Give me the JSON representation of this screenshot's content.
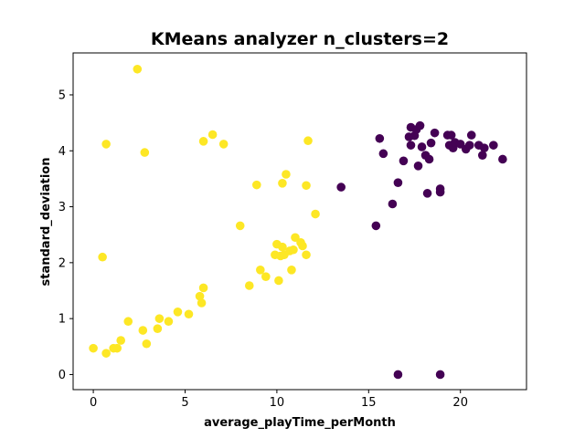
{
  "chart_data": {
    "type": "scatter",
    "title": "KMeans analyzer n_clusters=2",
    "xlabel": "average_playTime_perMonth",
    "ylabel": "standard_deviation",
    "xlim": [
      -1.1,
      23.6
    ],
    "ylim": [
      -0.27,
      5.75
    ],
    "xticks": [
      0,
      5,
      10,
      15,
      20
    ],
    "yticks": [
      0,
      1,
      2,
      3,
      4,
      5
    ],
    "grid": false,
    "legend": "none",
    "series": [
      {
        "color": "#440154",
        "points": [
          [
            13.5,
            3.35
          ],
          [
            15.4,
            2.66
          ],
          [
            15.6,
            4.22
          ],
          [
            15.8,
            3.95
          ],
          [
            16.3,
            3.05
          ],
          [
            16.6,
            3.43
          ],
          [
            16.9,
            3.82
          ],
          [
            17.2,
            4.25
          ],
          [
            17.3,
            4.42
          ],
          [
            17.3,
            4.1
          ],
          [
            17.5,
            4.27
          ],
          [
            17.6,
            4.38
          ],
          [
            17.7,
            3.73
          ],
          [
            17.8,
            4.45
          ],
          [
            17.9,
            4.07
          ],
          [
            18.1,
            3.92
          ],
          [
            18.2,
            3.24
          ],
          [
            18.3,
            3.85
          ],
          [
            18.4,
            4.14
          ],
          [
            18.6,
            4.32
          ],
          [
            18.9,
            3.32
          ],
          [
            18.9,
            3.26
          ],
          [
            19.3,
            4.28
          ],
          [
            19.4,
            4.1
          ],
          [
            19.5,
            4.28
          ],
          [
            19.6,
            4.05
          ],
          [
            19.7,
            4.15
          ],
          [
            20.0,
            4.12
          ],
          [
            20.3,
            4.03
          ],
          [
            20.5,
            4.1
          ],
          [
            20.6,
            4.28
          ],
          [
            21.0,
            4.1
          ],
          [
            21.2,
            3.92
          ],
          [
            21.3,
            4.05
          ],
          [
            21.8,
            4.1
          ],
          [
            22.3,
            3.85
          ],
          [
            16.6,
            0.0
          ],
          [
            18.9,
            0.0
          ]
        ]
      },
      {
        "color": "#fde725",
        "points": [
          [
            0.0,
            0.47
          ],
          [
            0.5,
            2.1
          ],
          [
            0.7,
            4.12
          ],
          [
            0.7,
            0.38
          ],
          [
            1.1,
            0.47
          ],
          [
            1.3,
            0.47
          ],
          [
            1.5,
            0.61
          ],
          [
            1.9,
            0.95
          ],
          [
            2.4,
            5.46
          ],
          [
            2.7,
            0.79
          ],
          [
            2.8,
            3.97
          ],
          [
            2.9,
            0.55
          ],
          [
            3.5,
            0.82
          ],
          [
            3.6,
            1.0
          ],
          [
            4.1,
            0.95
          ],
          [
            4.6,
            1.12
          ],
          [
            5.2,
            1.08
          ],
          [
            5.8,
            1.4
          ],
          [
            5.9,
            1.28
          ],
          [
            6.0,
            1.55
          ],
          [
            6.0,
            4.17
          ],
          [
            6.5,
            4.29
          ],
          [
            7.1,
            4.12
          ],
          [
            8.0,
            2.66
          ],
          [
            8.5,
            1.59
          ],
          [
            8.9,
            3.39
          ],
          [
            9.1,
            1.87
          ],
          [
            9.4,
            1.75
          ],
          [
            9.9,
            2.14
          ],
          [
            10.0,
            2.33
          ],
          [
            10.1,
            1.68
          ],
          [
            10.2,
            2.12
          ],
          [
            10.3,
            2.28
          ],
          [
            10.3,
            3.42
          ],
          [
            10.4,
            2.14
          ],
          [
            10.5,
            3.58
          ],
          [
            10.7,
            2.21
          ],
          [
            10.8,
            1.87
          ],
          [
            10.9,
            2.23
          ],
          [
            11.0,
            2.45
          ],
          [
            11.3,
            2.36
          ],
          [
            11.4,
            2.3
          ],
          [
            11.6,
            2.14
          ],
          [
            11.6,
            3.38
          ],
          [
            11.7,
            4.18
          ],
          [
            12.1,
            2.87
          ]
        ]
      }
    ]
  }
}
